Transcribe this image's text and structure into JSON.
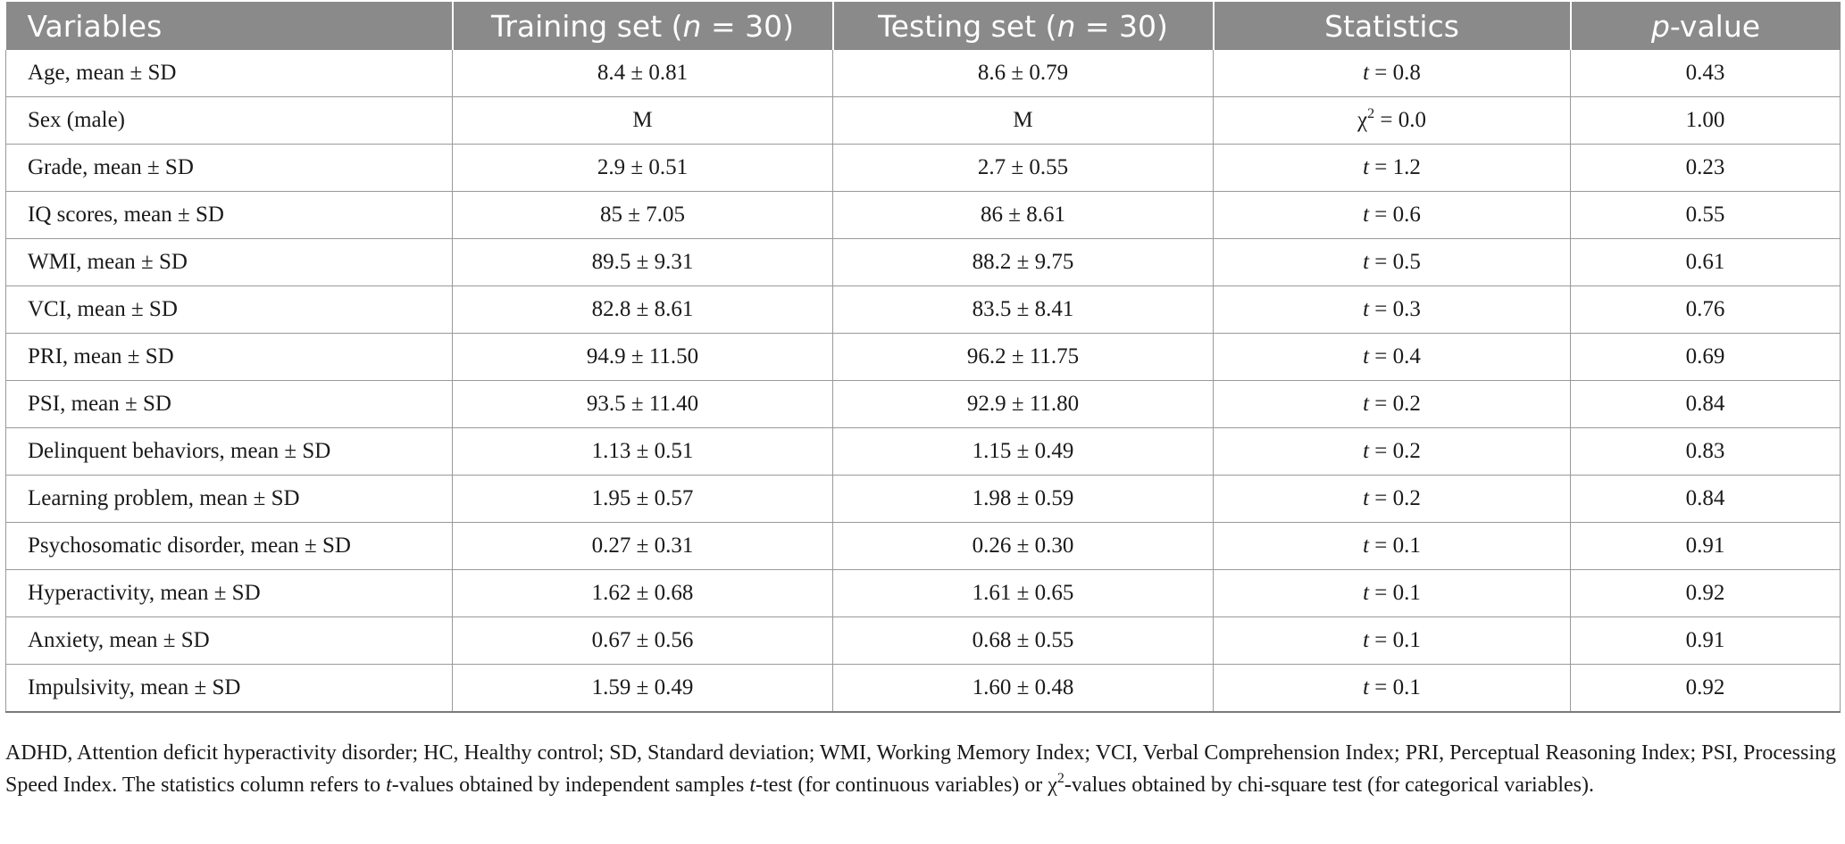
{
  "headers": {
    "variables": "Variables",
    "training_prefix": "Training set (",
    "training_n": "n",
    "training_suffix": " = 30)",
    "testing_prefix": "Testing set (",
    "testing_n": "n",
    "testing_suffix": " = 30)",
    "statistics": "Statistics",
    "p_italic": "p",
    "p_suffix": "-value"
  },
  "rows": [
    {
      "variable": "Age, mean ± SD",
      "training": "8.4 ± 0.81",
      "testing": "8.6 ± 0.79",
      "stat_symbol": "t",
      "stat_value": " = 0.8",
      "p": "0.43"
    },
    {
      "variable": "Sex (male)",
      "training": "M",
      "testing": "M",
      "stat_symbol": "χ",
      "stat_sup": "2",
      "stat_value": " = 0.0",
      "p": "1.00"
    },
    {
      "variable": "Grade, mean ± SD",
      "training": "2.9 ± 0.51",
      "testing": "2.7 ± 0.55",
      "stat_symbol": "t",
      "stat_value": " = 1.2",
      "p": "0.23"
    },
    {
      "variable": "IQ scores, mean ± SD",
      "training": "85 ± 7.05",
      "testing": "86 ± 8.61",
      "stat_symbol": "t",
      "stat_value": " = 0.6",
      "p": "0.55"
    },
    {
      "variable": "WMI, mean ± SD",
      "training": "89.5 ± 9.31",
      "testing": "88.2 ± 9.75",
      "stat_symbol": "t",
      "stat_value": " = 0.5",
      "p": "0.61"
    },
    {
      "variable": "VCI, mean ± SD",
      "training": "82.8 ± 8.61",
      "testing": "83.5 ± 8.41",
      "stat_symbol": "t",
      "stat_value": " = 0.3",
      "p": "0.76"
    },
    {
      "variable": "PRI, mean ± SD",
      "training": "94.9 ± 11.50",
      "testing": "96.2 ± 11.75",
      "stat_symbol": "t",
      "stat_value": " = 0.4",
      "p": "0.69"
    },
    {
      "variable": "PSI, mean ± SD",
      "training": "93.5 ± 11.40",
      "testing": "92.9 ± 11.80",
      "stat_symbol": "t",
      "stat_value": " = 0.2",
      "p": "0.84"
    },
    {
      "variable": "Delinquent behaviors, mean ± SD",
      "training": "1.13 ± 0.51",
      "testing": "1.15 ± 0.49",
      "stat_symbol": "t",
      "stat_value": " = 0.2",
      "p": "0.83"
    },
    {
      "variable": "Learning problem, mean ± SD",
      "training": "1.95 ± 0.57",
      "testing": "1.98 ± 0.59",
      "stat_symbol": "t",
      "stat_value": " = 0.2",
      "p": "0.84"
    },
    {
      "variable": "Psychosomatic disorder, mean ± SD",
      "training": "0.27 ± 0.31",
      "testing": "0.26 ± 0.30",
      "stat_symbol": "t",
      "stat_value": " = 0.1",
      "p": "0.91"
    },
    {
      "variable": "Hyperactivity, mean ± SD",
      "training": "1.62 ± 0.68",
      "testing": "1.61 ± 0.65",
      "stat_symbol": "t",
      "stat_value": " = 0.1",
      "p": "0.92"
    },
    {
      "variable": "Anxiety, mean ± SD",
      "training": "0.67 ± 0.56",
      "testing": "0.68 ± 0.55",
      "stat_symbol": "t",
      "stat_value": " = 0.1",
      "p": "0.91"
    },
    {
      "variable": "Impulsivity, mean ± SD",
      "training": "1.59 ± 0.49",
      "testing": "1.60 ± 0.48",
      "stat_symbol": "t",
      "stat_value": " = 0.1",
      "p": "0.92"
    }
  ],
  "footnote": {
    "part1": "ADHD, Attention deficit hyperactivity disorder; HC, Healthy control; SD, Standard deviation; WMI, Working Memory Index; VCI, Verbal Comprehension Index; PRI, Perceptual Reasoning Index; PSI, Processing Speed Index. The statistics column refers to ",
    "t1": "t",
    "part2": "-values obtained by independent samples ",
    "t2": "t",
    "part3": "-test (for continuous variables) or χ",
    "sup": "2",
    "part4": "-values obtained by chi-square test (for categorical variables)."
  }
}
